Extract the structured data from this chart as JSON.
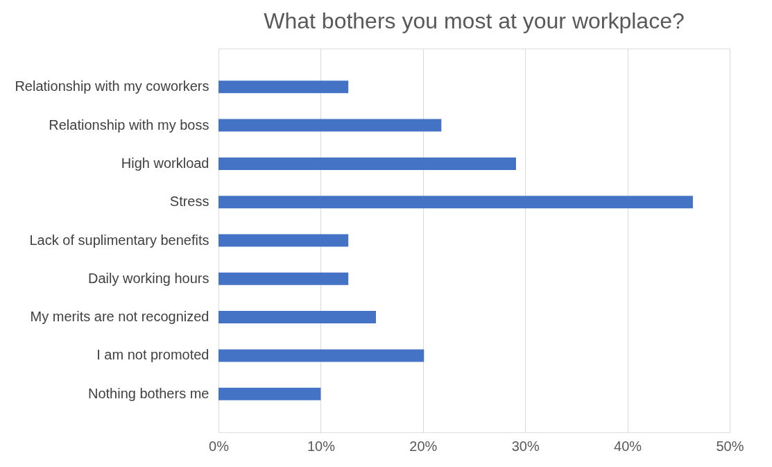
{
  "chart_data": {
    "type": "bar",
    "orientation": "horizontal",
    "title": "What bothers you most at your workplace?",
    "categories": [
      "Relationship with my coworkers",
      "Relationship with my boss",
      "High workload",
      "Stress",
      "Lack of suplimentary benefits",
      "Daily working hours",
      "My merits are not recognized",
      "I am not promoted",
      "Nothing bothers me"
    ],
    "values": [
      12.7,
      21.8,
      29.1,
      46.4,
      12.7,
      12.7,
      15.4,
      20.1,
      10
    ],
    "color": "#4472c4",
    "xlim": [
      0,
      50
    ],
    "xticks": [
      {
        "value": 0,
        "label": "0%"
      },
      {
        "value": 10,
        "label": "10%"
      },
      {
        "value": 20,
        "label": "20%"
      },
      {
        "value": 30,
        "label": "30%"
      },
      {
        "value": 40,
        "label": "40%"
      },
      {
        "value": 50,
        "label": "50%"
      }
    ],
    "grid": "x"
  }
}
